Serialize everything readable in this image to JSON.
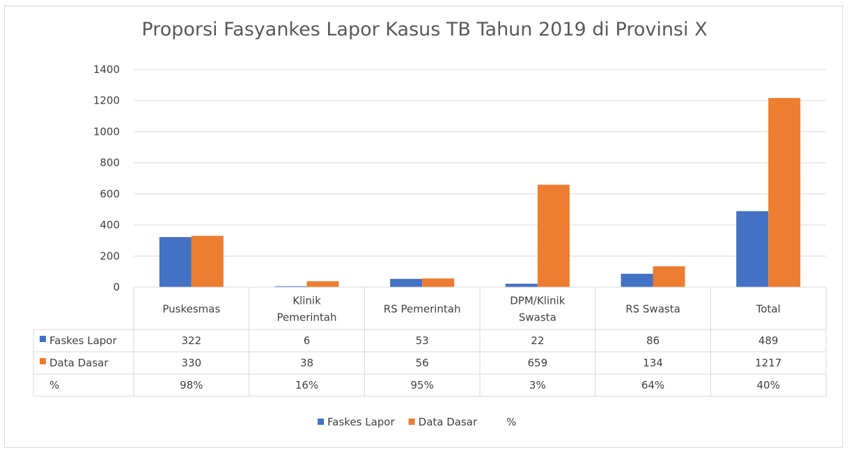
{
  "chart_data": {
    "type": "bar",
    "title": "Proporsi Fasyankes  Lapor Kasus TB Tahun 2019 di Provinsi X",
    "categories": [
      [
        "Puskesmas"
      ],
      [
        "Klinik",
        "Pemerintah"
      ],
      [
        "RS Pemerintah"
      ],
      [
        "DPM/Klinik",
        "Swasta"
      ],
      [
        "RS Swasta"
      ],
      [
        "Total"
      ]
    ],
    "series": [
      {
        "name": "Faskes Lapor",
        "color": "#4472c4",
        "values": [
          322,
          6,
          53,
          22,
          86,
          489
        ]
      },
      {
        "name": "Data Dasar",
        "color": "#ed7d31",
        "values": [
          330,
          38,
          56,
          659,
          134,
          1217
        ]
      }
    ],
    "table_rows": [
      {
        "name": "Faskes Lapor",
        "color": "#4472c4",
        "cells": [
          "322",
          "6",
          "53",
          "22",
          "86",
          "489"
        ]
      },
      {
        "name": "Data Dasar",
        "color": "#ed7d31",
        "cells": [
          "330",
          "38",
          "56",
          "659",
          "134",
          "1217"
        ]
      },
      {
        "name": "%",
        "color": "",
        "cells": [
          "98%",
          "16%",
          "95%",
          "3%",
          "64%",
          "40%"
        ]
      }
    ],
    "legend": [
      {
        "name": "Faskes Lapor",
        "color": "#4472c4"
      },
      {
        "name": "Data Dasar",
        "color": "#ed7d31"
      },
      {
        "name": "%",
        "color": ""
      }
    ],
    "yticks": [
      "0",
      "200",
      "400",
      "600",
      "800",
      "1000",
      "1200",
      "1400"
    ],
    "ylim": [
      0,
      1400
    ],
    "grid": true,
    "legend_position": "bottom"
  }
}
